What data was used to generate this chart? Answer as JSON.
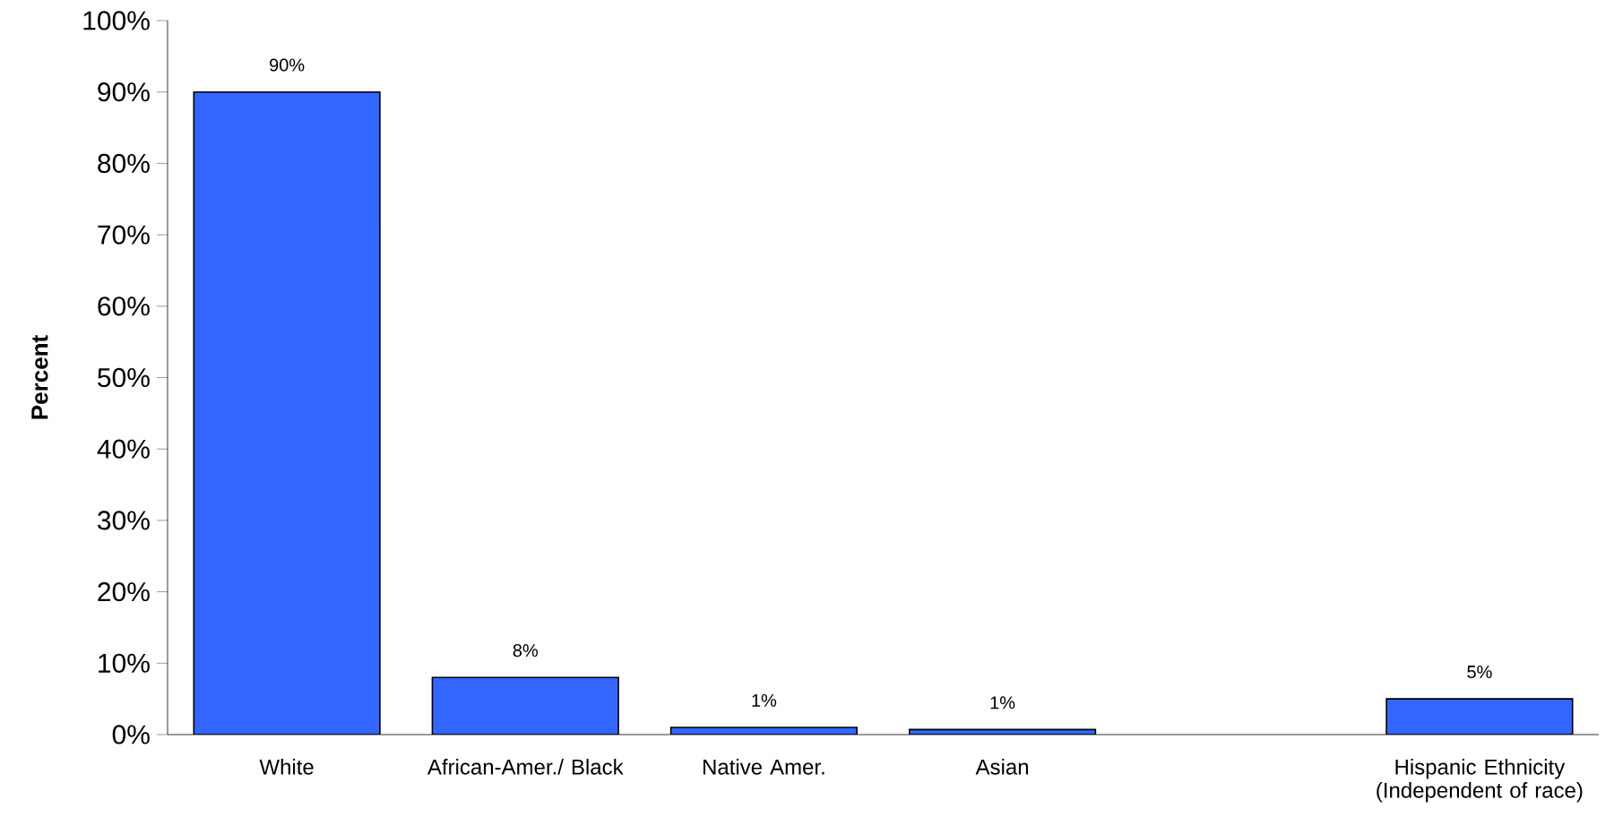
{
  "chart_data": {
    "type": "bar",
    "ylabel": "Percent",
    "categories": [
      "White",
      "African-Amer./ Black",
      "Native Amer.",
      "Asian",
      null,
      "Hispanic Ethnicity (Independent of race)"
    ],
    "values": [
      90,
      8,
      1,
      0.7,
      null,
      5
    ],
    "value_labels": [
      "90%",
      "8%",
      "1%",
      "1%",
      null,
      "5%"
    ],
    "color": "#3366ff",
    "ylim": [
      0,
      100
    ],
    "yticks": [
      {
        "value": 0,
        "label": "0%"
      },
      {
        "value": 10,
        "label": "10%"
      },
      {
        "value": 20,
        "label": "20%"
      },
      {
        "value": 30,
        "label": "30%"
      },
      {
        "value": 40,
        "label": "40%"
      },
      {
        "value": 50,
        "label": "50%"
      },
      {
        "value": 60,
        "label": "60%"
      },
      {
        "value": 70,
        "label": "70%"
      },
      {
        "value": 80,
        "label": "80%"
      },
      {
        "value": 90,
        "label": "90%"
      },
      {
        "value": 100,
        "label": "100%"
      }
    ],
    "grid": false
  }
}
